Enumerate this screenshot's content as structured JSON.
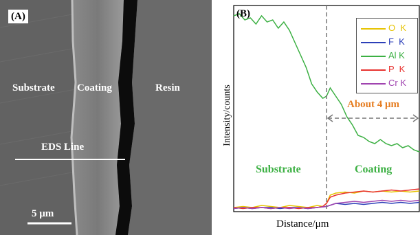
{
  "panel_a": {
    "tag": "(A)",
    "labels": {
      "substrate": "Substrate",
      "coating": "Coating",
      "resin": "Resin",
      "eds_line": "EDS Line",
      "scale_bar": "5 μm"
    }
  },
  "panel_b": {
    "tag": "(B)",
    "about": "About 4 μm",
    "substrate": "Substrate",
    "coating": "Coating"
  },
  "chart_data": {
    "type": "line",
    "xlabel": "Distance/μm",
    "ylabel": "Intensity/counts",
    "xlim": [
      0,
      100
    ],
    "ylim": [
      0,
      100
    ],
    "grid": false,
    "legend_position": "top-right",
    "interface_x": 50,
    "series": [
      {
        "name": "O  K",
        "color": "#e6c300",
        "x": [
          0,
          5,
          10,
          15,
          20,
          25,
          30,
          35,
          40,
          45,
          48,
          50,
          52,
          55,
          60,
          65,
          70,
          75,
          80,
          85,
          90,
          95,
          100
        ],
        "y": [
          2,
          2.5,
          2,
          3,
          2.5,
          2,
          3,
          2.5,
          2,
          3,
          2.5,
          4,
          8,
          9,
          9.5,
          9,
          10,
          9.5,
          10,
          9.5,
          10,
          9.5,
          10
        ]
      },
      {
        "name": "F  K",
        "color": "#2c3fb8",
        "x": [
          0,
          5,
          10,
          15,
          20,
          25,
          30,
          35,
          40,
          45,
          50,
          55,
          60,
          65,
          70,
          75,
          80,
          85,
          90,
          95,
          100
        ],
        "y": [
          1.5,
          2,
          1.5,
          2,
          2,
          1.5,
          2,
          2,
          1.5,
          2,
          2.5,
          4,
          3.5,
          4,
          3.5,
          4,
          4.5,
          4,
          4.5,
          4,
          4.5
        ]
      },
      {
        "name": "Al K",
        "color": "#3cb043",
        "x": [
          0,
          3,
          6,
          9,
          12,
          15,
          18,
          21,
          24,
          27,
          30,
          33,
          36,
          39,
          42,
          45,
          48,
          50,
          52,
          55,
          58,
          61,
          64,
          67,
          70,
          73,
          76,
          79,
          82,
          85,
          88,
          91,
          94,
          97,
          100
        ],
        "y": [
          95,
          96,
          93,
          94,
          91,
          95,
          92,
          93,
          89,
          92,
          88,
          82,
          76,
          70,
          62,
          58,
          55,
          56,
          60,
          56,
          52,
          46,
          42,
          37,
          36,
          34,
          33,
          35,
          33,
          32,
          33,
          31,
          32,
          30,
          29
        ]
      },
      {
        "name": "P  K",
        "color": "#e8322f",
        "x": [
          0,
          5,
          10,
          15,
          20,
          25,
          30,
          35,
          40,
          45,
          48,
          50,
          52,
          55,
          60,
          65,
          70,
          75,
          80,
          85,
          90,
          95,
          100
        ],
        "y": [
          2,
          1.5,
          2,
          2,
          1.5,
          2,
          2,
          1.5,
          2,
          2,
          2.5,
          4,
          7,
          8,
          9,
          9.5,
          10,
          9.5,
          10,
          10.5,
          10,
          10.5,
          11
        ]
      },
      {
        "name": "Cr K",
        "color": "#a044b0",
        "x": [
          0,
          5,
          10,
          15,
          20,
          25,
          30,
          35,
          40,
          45,
          50,
          55,
          60,
          65,
          70,
          75,
          80,
          85,
          90,
          95,
          100
        ],
        "y": [
          1.5,
          2,
          1.5,
          2,
          1.5,
          2,
          1.5,
          2,
          1.5,
          2,
          2.5,
          4,
          4.5,
          5,
          4.5,
          5,
          5.5,
          5,
          5.5,
          5,
          5.5
        ]
      }
    ]
  }
}
